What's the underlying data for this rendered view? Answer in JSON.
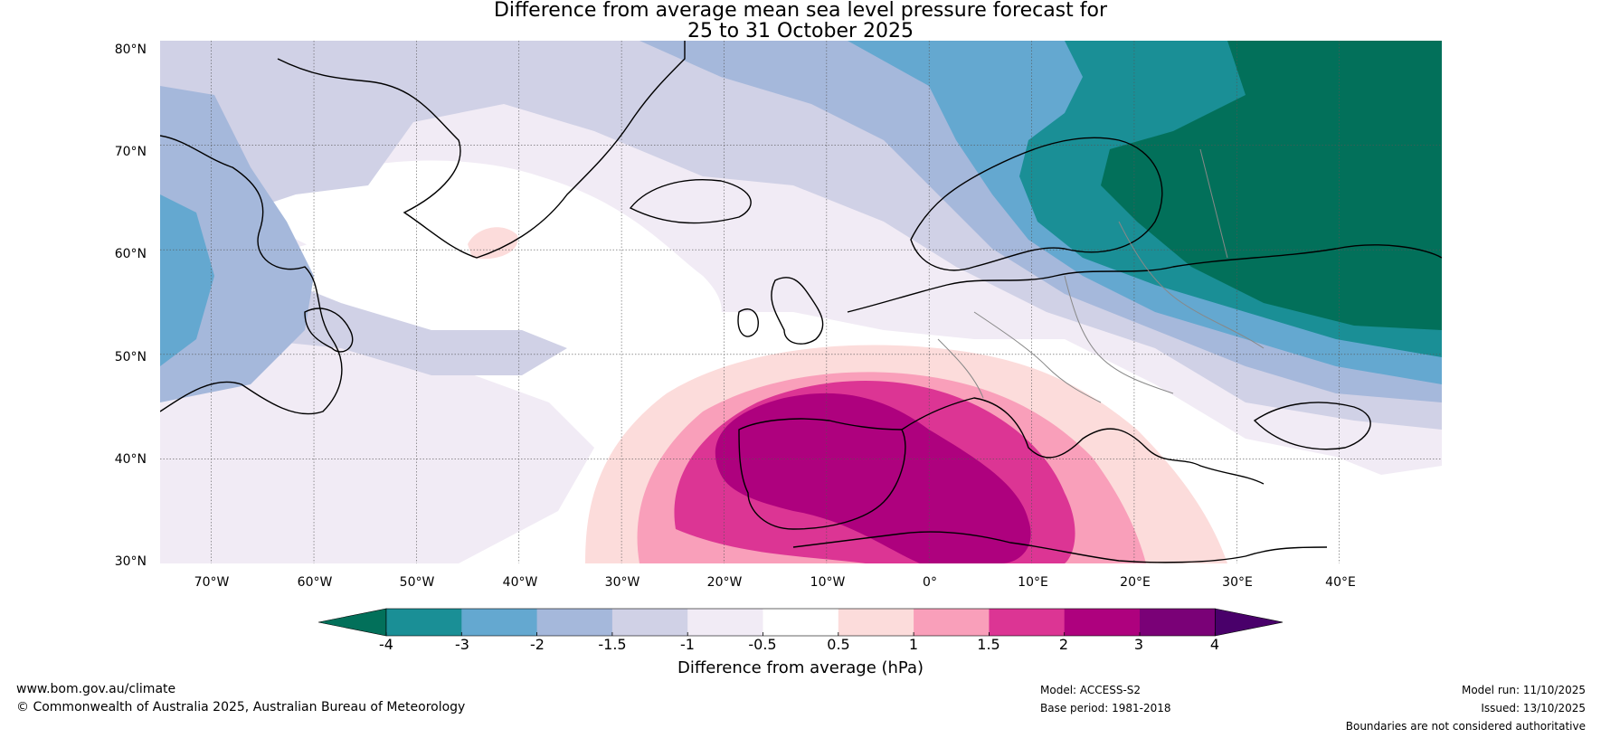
{
  "title": {
    "line1": "Difference from average mean sea level pressure forecast for",
    "line2": "25 to 31 October 2025"
  },
  "map": {
    "lat_labels": [
      "80°N",
      "70°N",
      "60°N",
      "50°N",
      "40°N",
      "30°N"
    ],
    "lon_labels": [
      "70°W",
      "60°W",
      "50°W",
      "40°W",
      "30°W",
      "20°W",
      "10°W",
      "0°",
      "10°E",
      "20°E",
      "30°E",
      "40°E"
    ],
    "lat_range": [
      30,
      80
    ],
    "lon_range": [
      -75,
      50
    ],
    "anomaly_features": [
      {
        "name": "high-pressure-anomaly-iberia",
        "center_lon": -6,
        "center_lat": 41,
        "peak_hpa": 3
      },
      {
        "name": "low-pressure-anomaly-scandinavia",
        "center_lon": 30,
        "center_lat": 65,
        "min_hpa": -4
      },
      {
        "name": "low-pressure-anomaly-labrador",
        "center_lon": -73,
        "center_lat": 58,
        "min_hpa": -3
      }
    ]
  },
  "colorbar": {
    "ticks": [
      "-4",
      "-3",
      "-2",
      "-1.5",
      "-1",
      "-0.5",
      "0.5",
      "1",
      "1.5",
      "2",
      "3",
      "4"
    ],
    "colors": [
      "#1a8f96",
      "#64a8d0",
      "#a5b8db",
      "#d0d1e6",
      "#f1ebf5",
      "#ffffff",
      "#fcdcdb",
      "#f99fba",
      "#dc3594",
      "#ae017e",
      "#7a0177"
    ],
    "extend_low_color": "#02705a",
    "extend_high_color": "#49006a",
    "label": "Difference from average (hPa)"
  },
  "footer": {
    "website": "www.bom.gov.au/climate",
    "copyright": "© Commonwealth of Australia 2025, Australian Bureau of Meteorology",
    "model": "Model: ACCESS-S2",
    "base_period": "Base period: 1981-2018",
    "model_run": "Model run: 11/10/2025",
    "issued": "Issued: 13/10/2025",
    "disclaimer": "Boundaries are not considered authoritative"
  }
}
